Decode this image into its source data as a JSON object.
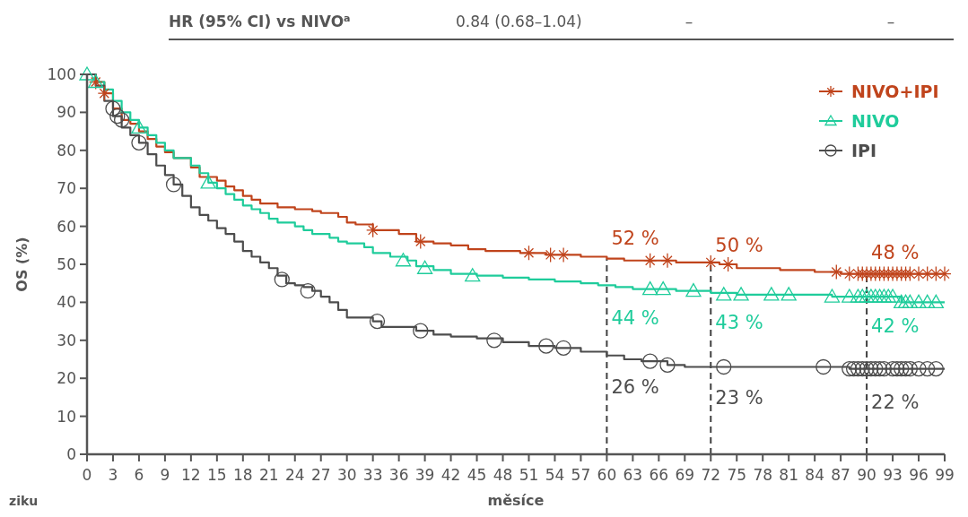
{
  "chart_data": {
    "type": "step",
    "xlabel": "měsíce",
    "ylabel": "OS (%)",
    "xlim": [
      0,
      99
    ],
    "xticks": [
      0,
      3,
      6,
      9,
      12,
      15,
      18,
      21,
      24,
      27,
      30,
      33,
      36,
      39,
      42,
      45,
      48,
      51,
      54,
      57,
      60,
      63,
      66,
      69,
      72,
      75,
      78,
      81,
      84,
      87,
      90,
      93,
      96,
      99
    ],
    "ylim": [
      0,
      100
    ],
    "yticks": [
      0,
      10,
      20,
      30,
      40,
      50,
      60,
      70,
      80,
      90,
      100
    ],
    "grid": false,
    "legend": "top right",
    "line_style": "solid",
    "series": [
      {
        "name": "NIVO+IPI",
        "color": "#c0441c",
        "x": [
          0,
          1,
          2,
          3,
          4,
          5,
          6,
          7,
          8,
          9,
          10,
          12,
          13,
          15,
          16,
          17,
          18,
          19,
          20,
          22,
          24,
          26,
          27,
          29,
          30,
          31,
          33,
          36,
          38,
          40,
          42,
          44,
          46,
          50,
          53,
          57,
          60,
          62,
          68,
          73,
          75,
          80,
          84,
          87,
          99
        ],
        "values": [
          100,
          98,
          95,
          91,
          88,
          87,
          85,
          83,
          81,
          79.5,
          78,
          75.5,
          73,
          72,
          70.5,
          69.5,
          68,
          67,
          66,
          65,
          64.5,
          64,
          63.5,
          62.5,
          61,
          60.5,
          59,
          58,
          56,
          55.5,
          55,
          54,
          53.5,
          53,
          52.5,
          52,
          51.5,
          51,
          50.5,
          50,
          49,
          48.5,
          48,
          47.5,
          47.5
        ]
      },
      {
        "name": "NIVO",
        "color": "#1fcc9b",
        "x": [
          0,
          1,
          2,
          3,
          4,
          5,
          6,
          7,
          8,
          9,
          10,
          12,
          13,
          14,
          15,
          16,
          17,
          18,
          19,
          20,
          21,
          22,
          24,
          25,
          26,
          28,
          29,
          30,
          32,
          33,
          35,
          37,
          38,
          40,
          42,
          45,
          48,
          51,
          54,
          57,
          59,
          61,
          63,
          68,
          72,
          75,
          86,
          94,
          99
        ],
        "values": [
          100,
          98,
          96,
          93,
          90,
          88,
          86,
          84,
          82,
          80,
          78,
          76,
          74,
          71.5,
          70,
          68.5,
          67,
          65.5,
          64.5,
          63.5,
          62,
          61,
          60,
          59,
          58,
          57,
          56,
          55.5,
          54.5,
          53,
          52,
          51,
          49.5,
          48.5,
          47.5,
          47,
          46.5,
          46,
          45.5,
          45,
          44.5,
          44,
          43.5,
          43,
          42.5,
          42,
          41.5,
          40,
          40
        ]
      },
      {
        "name": "IPI",
        "color": "#4d4d4d",
        "x": [
          0,
          1,
          2,
          3,
          4,
          5,
          6,
          7,
          8,
          9,
          10,
          11,
          12,
          13,
          14,
          15,
          16,
          17,
          18,
          19,
          20,
          21,
          22,
          23,
          24,
          25,
          26,
          27,
          28,
          29,
          30,
          33,
          34,
          38,
          40,
          42,
          45,
          48,
          51,
          54,
          57,
          60,
          62,
          64,
          67,
          69,
          88,
          99
        ],
        "values": [
          100,
          97,
          93,
          89,
          86,
          84,
          82,
          79,
          76,
          73.5,
          71,
          68,
          65,
          63,
          61.5,
          59.5,
          58,
          56,
          53.5,
          52,
          50.5,
          49,
          47,
          45,
          44.5,
          44,
          43,
          41.5,
          40,
          38,
          36,
          35,
          33.5,
          32.5,
          31.5,
          31,
          30.5,
          29.5,
          28.5,
          28,
          27,
          26,
          25,
          24.5,
          23.5,
          23,
          22.5,
          22.5
        ]
      },
      {
        "type": "scatter",
        "color": "#c0441c",
        "marker": "cross",
        "x": [
          1,
          2,
          33,
          38.5,
          51,
          53.5,
          55,
          65,
          67,
          72,
          74,
          86.5,
          88,
          89,
          89.5,
          90,
          90.5,
          91,
          91.5,
          92,
          92.5,
          93,
          93.5,
          94,
          94.5,
          95,
          96,
          97,
          98,
          99
        ],
        "values": [
          98,
          95,
          59,
          56,
          53,
          52.5,
          52.5,
          51,
          51,
          50.5,
          50,
          48,
          47.5,
          47.5,
          47.5,
          47.5,
          47.5,
          47.5,
          47.5,
          47.5,
          47.5,
          47.5,
          47.5,
          47.5,
          47.5,
          47.5,
          47.5,
          47.5,
          47.5,
          47.5
        ]
      },
      {
        "type": "scatter",
        "color": "#1fcc9b",
        "marker": "triangle",
        "x": [
          0,
          1,
          6,
          14,
          36.5,
          39,
          44.5,
          65,
          66.5,
          70,
          73.5,
          75.5,
          79,
          81,
          86,
          88,
          89,
          89.5,
          90,
          90.5,
          91,
          91.5,
          92,
          92.5,
          93,
          94,
          94.5,
          95,
          96,
          97,
          98
        ],
        "values": [
          100,
          98,
          86,
          71.5,
          51,
          49,
          47,
          43.5,
          43.5,
          43,
          42,
          42,
          42,
          42,
          41.5,
          41.5,
          41.5,
          41.5,
          41.5,
          41.5,
          41.5,
          41.5,
          41.5,
          41.5,
          41.5,
          40,
          40,
          40,
          40,
          40,
          40
        ]
      },
      {
        "type": "scatter",
        "color": "#4d4d4d",
        "marker": "circle",
        "x": [
          3,
          3.5,
          4,
          6,
          10,
          22.5,
          25.5,
          33.5,
          38.5,
          47,
          53,
          55,
          65,
          67,
          73.5,
          85,
          88,
          88.5,
          89,
          89.5,
          90,
          90.5,
          91,
          91.5,
          92,
          93,
          93.5,
          94,
          94.5,
          95,
          96,
          97,
          98
        ],
        "values": [
          91,
          89,
          88,
          82,
          71,
          46,
          43,
          35,
          32.5,
          30,
          28.5,
          28,
          24.5,
          23.5,
          23,
          23,
          22.5,
          22.5,
          22.5,
          22.5,
          22.5,
          22.5,
          22.5,
          22.5,
          22.5,
          22.5,
          22.5,
          22.5,
          22.5,
          22.5,
          22.5,
          22.5,
          22.5
        ]
      }
    ],
    "ref_lines": [
      {
        "axis": "x",
        "value": 60,
        "line_style": "dashed",
        "color": "#404040"
      },
      {
        "axis": "x",
        "value": 72,
        "line_style": "dashed",
        "color": "#404040"
      },
      {
        "axis": "x",
        "value": 90,
        "line_style": "dashed",
        "color": "#404040"
      }
    ],
    "annotations": [
      "HR (95% CI) vs NIVO$^{a}$",
      "0.84 (0.68–1.04)",
      "–",
      "–",
      "ziku",
      {
        "text": "52 %",
        "x": 60,
        "y": 52
      },
      {
        "text": "50 %",
        "x": 72,
        "y": 50
      },
      {
        "text": "48 %",
        "x": 90,
        "y": 48
      },
      {
        "text": "44 %",
        "x": 60,
        "y": 44
      },
      {
        "text": "43 %",
        "x": 72,
        "y": 43
      },
      {
        "text": "42 %",
        "x": 90,
        "y": 42
      },
      {
        "text": "26 %",
        "x": 60,
        "y": 26
      },
      {
        "text": "23 %",
        "x": 72,
        "y": 23
      },
      {
        "text": "22 %",
        "x": 90,
        "y": 22
      }
    ]
  }
}
